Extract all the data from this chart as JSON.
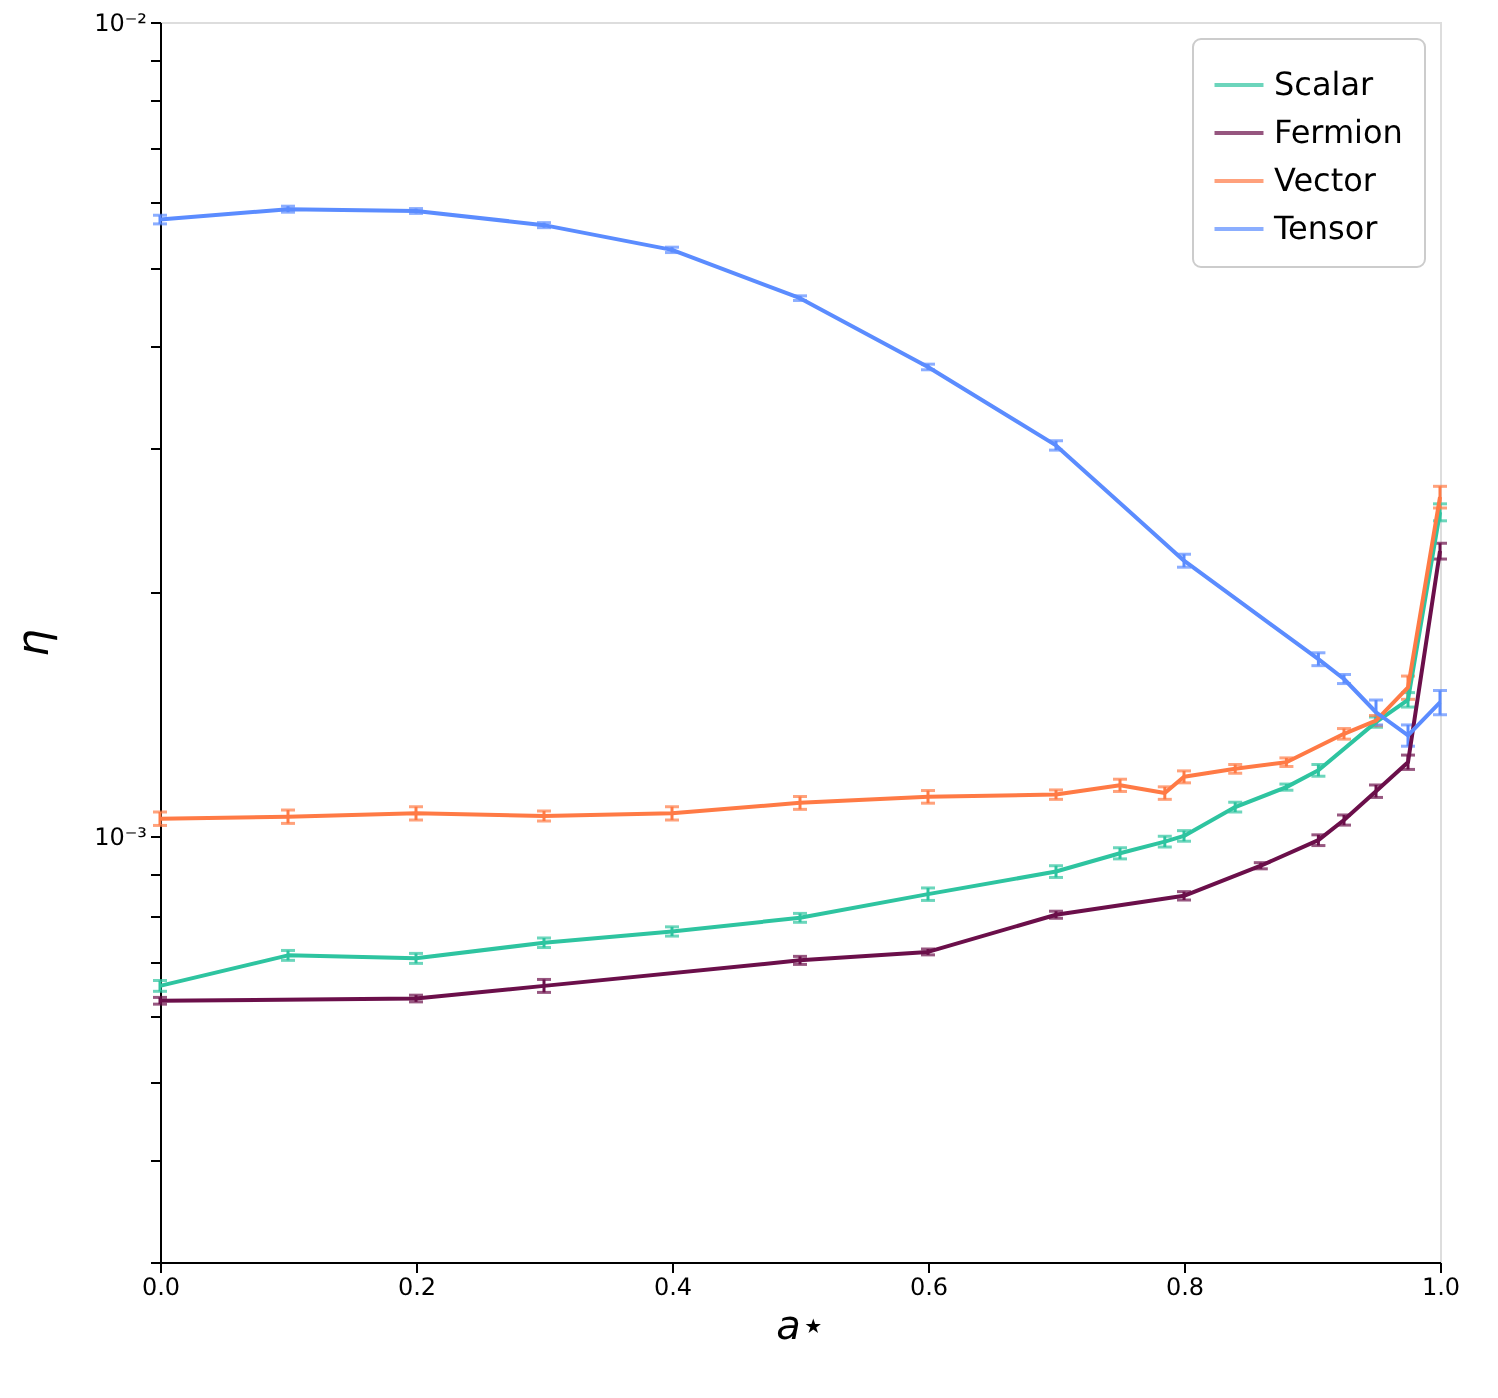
{
  "chart_data": {
    "type": "line",
    "xlabel": "a⋆",
    "ylabel": "η",
    "log": "y",
    "legend": "top right",
    "grid": false,
    "marker": "none",
    "line_style": "solid",
    "xlim": [
      0,
      1
    ],
    "xticks": [
      {
        "value": 0,
        "label": "0.0"
      },
      {
        "value": 0.2,
        "label": "0.2"
      },
      {
        "value": 0.4,
        "label": "0.4"
      },
      {
        "value": 0.6,
        "label": "0.6"
      },
      {
        "value": 0.8,
        "label": "0.8"
      },
      {
        "value": 1,
        "label": "1.0"
      }
    ],
    "ylim": [
      0.0003,
      0.01
    ],
    "yticks": [
      {
        "value": 0.0003,
        "label": null
      },
      {
        "value": 0.0004,
        "label": null
      },
      {
        "value": 0.0005,
        "label": null
      },
      {
        "value": 0.0006,
        "label": null
      },
      {
        "value": 0.0007,
        "label": null
      },
      {
        "value": 0.0008,
        "label": null
      },
      {
        "value": 0.0009,
        "label": null
      },
      {
        "value": 0.001,
        "label": "10⁻³"
      },
      {
        "value": 0.002,
        "label": null
      },
      {
        "value": 0.003,
        "label": null
      },
      {
        "value": 0.004,
        "label": null
      },
      {
        "value": 0.005,
        "label": null
      },
      {
        "value": 0.006,
        "label": null
      },
      {
        "value": 0.007,
        "label": null
      },
      {
        "value": 0.008,
        "label": null
      },
      {
        "value": 0.009,
        "label": null
      },
      {
        "value": 0.01,
        "label": "10⁻²"
      }
    ],
    "series": [
      {
        "name": "Scalar",
        "color": "#2ec4a0",
        "x": [
          0,
          0.1,
          0.2,
          0.3,
          0.4,
          0.5,
          0.6,
          0.7,
          0.75,
          0.785,
          0.8,
          0.84,
          0.88,
          0.905,
          0.95,
          0.975,
          1.0
        ],
        "values": [
          0.000655,
          0.000714,
          0.000708,
          0.00074,
          0.000764,
          0.000794,
          0.000849,
          0.000905,
          0.000953,
          0.000985,
          0.001001,
          0.001086,
          0.001149,
          0.001205,
          0.001381,
          0.001471,
          0.0025
        ],
        "errors": [
          1e-05,
          1e-05,
          1e-05,
          1e-05,
          1e-05,
          1e-05,
          1.5e-05,
          1.5e-05,
          1.5e-05,
          1.5e-05,
          1.5e-05,
          1.5e-05,
          1e-05,
          2e-05,
          2e-05,
          3e-05,
          6e-05
        ]
      },
      {
        "name": "Fermion",
        "color": "#6b0f4a",
        "x": [
          0,
          0.2,
          0.3,
          0.5,
          0.6,
          0.7,
          0.8,
          0.86,
          0.905,
          0.925,
          0.95,
          0.975,
          1.0
        ],
        "values": [
          0.000628,
          0.000632,
          0.000655,
          0.000704,
          0.000721,
          0.000801,
          0.000845,
          0.00092,
          0.000989,
          0.001047,
          0.001136,
          0.001233,
          0.00224
        ],
        "errors": [
          6e-06,
          6e-06,
          1.2e-05,
          8e-06,
          6e-06,
          8e-06,
          1e-05,
          8e-06,
          1.5e-05,
          1.5e-05,
          2e-05,
          2.5e-05,
          5e-05
        ]
      },
      {
        "name": "Vector",
        "color": "#ff7a45",
        "x": [
          0,
          0.1,
          0.2,
          0.3,
          0.4,
          0.5,
          0.6,
          0.7,
          0.75,
          0.785,
          0.8,
          0.84,
          0.88,
          0.925,
          0.95,
          0.975,
          1.0
        ],
        "values": [
          0.001051,
          0.001057,
          0.001067,
          0.001059,
          0.001067,
          0.001099,
          0.001118,
          0.001125,
          0.001155,
          0.00113,
          0.001183,
          0.00121,
          0.001233,
          0.001336,
          0.001387,
          0.001523,
          0.00261
        ],
        "errors": [
          2e-05,
          2e-05,
          2e-05,
          1.5e-05,
          2e-05,
          2e-05,
          2e-05,
          1.5e-05,
          2e-05,
          2e-05,
          2e-05,
          1.5e-05,
          1.5e-05,
          2e-05,
          2e-05,
          5e-05,
          8e-05
        ]
      },
      {
        "name": "Tensor",
        "color": "#5b8cff",
        "x": [
          0,
          0.1,
          0.2,
          0.3,
          0.4,
          0.5,
          0.6,
          0.7,
          0.8,
          0.905,
          0.925,
          0.95,
          0.975,
          1.0
        ],
        "values": [
          0.00572,
          0.00589,
          0.00586,
          0.00563,
          0.00525,
          0.00458,
          0.00377,
          0.00302,
          0.00218,
          0.00165,
          0.00156,
          0.00142,
          0.00133,
          0.00146
        ],
        "errors": [
          7e-05,
          5e-05,
          4e-05,
          4e-05,
          4e-05,
          3e-05,
          3e-05,
          4e-05,
          4e-05,
          3e-05,
          2e-05,
          5e-05,
          4e-05,
          5e-05
        ]
      }
    ]
  }
}
